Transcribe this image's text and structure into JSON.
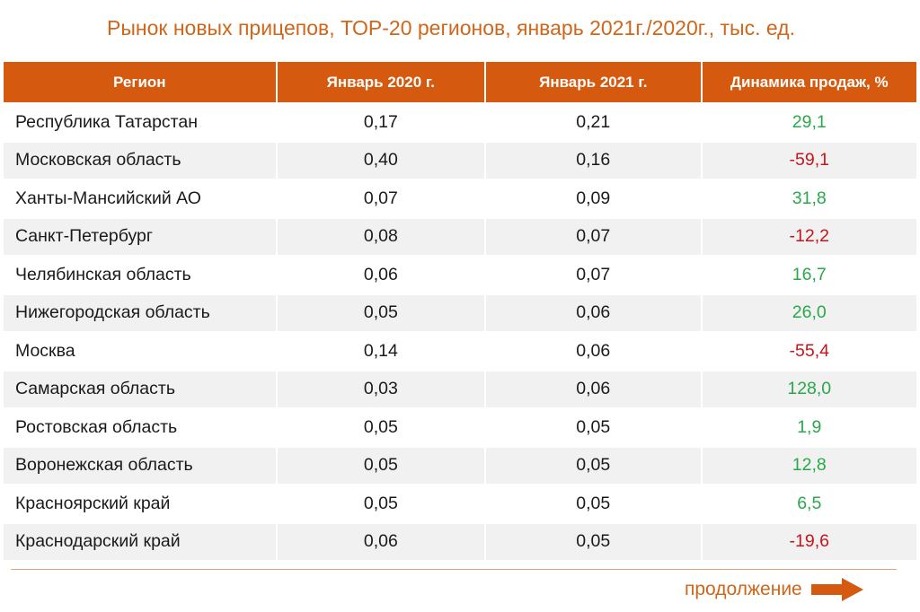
{
  "title": "Рынок новых прицепов, ТОР-20 регионов, январь 2021г./2020г., тыс. ед.",
  "colors": {
    "accent": "#d55a0f",
    "title_text": "#d0661a",
    "positive": "#2aa84a",
    "negative": "#c8151b"
  },
  "table": {
    "headers": [
      "Регион",
      "Январь 2020 г.",
      "Январь 2021 г.",
      "Динамика продаж, %"
    ],
    "rows": [
      {
        "region": "Республика Татарстан",
        "jan2020": "0,17",
        "jan2021": "0,21",
        "dynamics": "29,1"
      },
      {
        "region": "Московская область",
        "jan2020": "0,40",
        "jan2021": "0,16",
        "dynamics": "-59,1"
      },
      {
        "region": "Ханты-Мансийский АО",
        "jan2020": "0,07",
        "jan2021": "0,09",
        "dynamics": "31,8"
      },
      {
        "region": "Санкт-Петербург",
        "jan2020": "0,08",
        "jan2021": "0,07",
        "dynamics": "-12,2"
      },
      {
        "region": "Челябинская область",
        "jan2020": "0,06",
        "jan2021": "0,07",
        "dynamics": "16,7"
      },
      {
        "region": "Нижегородская область",
        "jan2020": "0,05",
        "jan2021": "0,06",
        "dynamics": "26,0"
      },
      {
        "region": "Москва",
        "jan2020": "0,14",
        "jan2021": "0,06",
        "dynamics": "-55,4"
      },
      {
        "region": "Самарская область",
        "jan2020": "0,03",
        "jan2021": "0,06",
        "dynamics": "128,0"
      },
      {
        "region": "Ростовская область",
        "jan2020": "0,05",
        "jan2021": "0,05",
        "dynamics": "1,9"
      },
      {
        "region": "Воронежская область",
        "jan2020": "0,05",
        "jan2021": "0,05",
        "dynamics": "12,8"
      },
      {
        "region": "Красноярский край",
        "jan2020": "0,05",
        "jan2021": "0,05",
        "dynamics": "6,5"
      },
      {
        "region": "Краснодарский край",
        "jan2020": "0,06",
        "jan2021": "0,05",
        "dynamics": "-19,6"
      }
    ]
  },
  "footer": {
    "continue_label": "продолжение",
    "continue_icon": "right-arrow-icon"
  }
}
